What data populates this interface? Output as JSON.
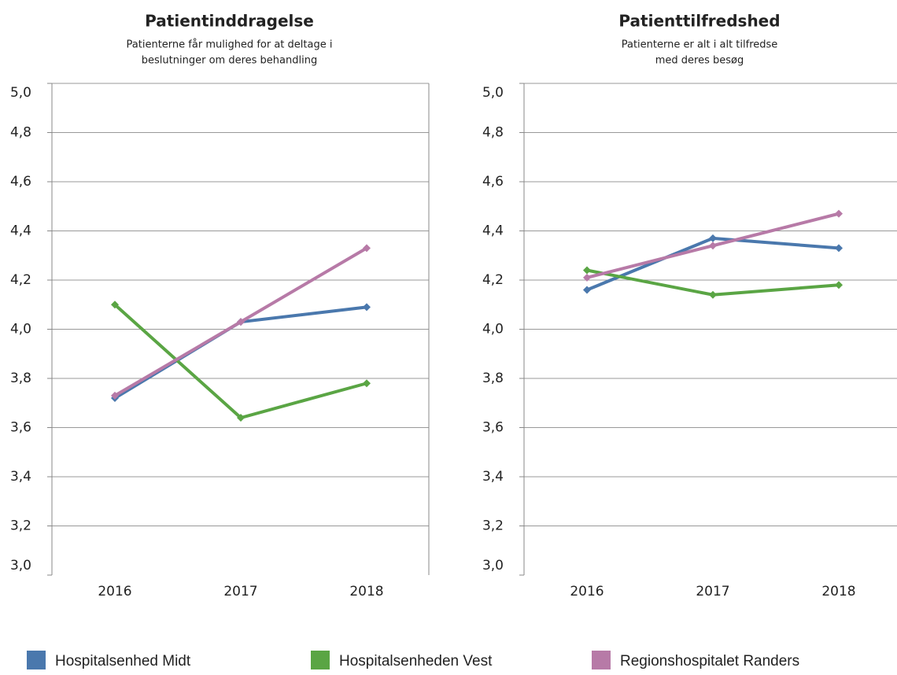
{
  "chart_data": [
    {
      "type": "line",
      "title": "Patientinddragelse",
      "subtitle": [
        "Patienterne får mulighed for at deltage i",
        "beslutninger om deres behandling"
      ],
      "categories": [
        "2016",
        "2017",
        "2018"
      ],
      "series": [
        {
          "name": "Hospitalsenhed Midt",
          "color": "#4a78ad",
          "values": [
            3.72,
            4.03,
            4.09
          ]
        },
        {
          "name": "Hospitalsenheden Vest",
          "color": "#5aa544",
          "values": [
            4.1,
            3.64,
            3.78
          ]
        },
        {
          "name": "Regionshospitalet Randers",
          "color": "#b77aa7",
          "values": [
            3.73,
            4.03,
            4.33
          ]
        }
      ],
      "ylim": [
        3.0,
        5.0
      ],
      "yticks": [
        {
          "value": 3.0,
          "label": "3,0"
        },
        {
          "value": 3.2,
          "label": "3,2"
        },
        {
          "value": 3.4,
          "label": "3,4"
        },
        {
          "value": 3.6,
          "label": "3,6"
        },
        {
          "value": 3.8,
          "label": "3,8"
        },
        {
          "value": 4.0,
          "label": "4,0"
        },
        {
          "value": 4.2,
          "label": "4,2"
        },
        {
          "value": 4.4,
          "label": "4,4"
        },
        {
          "value": 4.6,
          "label": "4,6"
        },
        {
          "value": 4.8,
          "label": "4,8"
        },
        {
          "value": 5.0,
          "label": "5,0"
        }
      ],
      "grid": true
    },
    {
      "type": "line",
      "title": "Patienttilfredshed",
      "subtitle": [
        "Patienterne er alt i alt tilfredse",
        "med deres besøg"
      ],
      "categories": [
        "2016",
        "2017",
        "2018"
      ],
      "series": [
        {
          "color": "#4a78ad",
          "values": [
            4.16,
            4.37,
            4.33
          ]
        },
        {
          "color": "#5aa544",
          "values": [
            4.24,
            4.14,
            4.18
          ]
        },
        {
          "color": "#b77aa7",
          "values": [
            4.21,
            4.34,
            4.47
          ]
        }
      ],
      "ylim": [
        3.0,
        5.0
      ],
      "yticks": [
        {
          "value": 3.0,
          "label": "3,0"
        },
        {
          "value": 3.2,
          "label": "3,2"
        },
        {
          "value": 3.4,
          "label": "3,4"
        },
        {
          "value": 3.6,
          "label": "3,6"
        },
        {
          "value": 3.8,
          "label": "3,8"
        },
        {
          "value": 4.0,
          "label": "4,0"
        },
        {
          "value": 4.2,
          "label": "4,2"
        },
        {
          "value": 4.4,
          "label": "4,4"
        },
        {
          "value": 4.6,
          "label": "4,6"
        },
        {
          "value": 4.8,
          "label": "4,8"
        },
        {
          "value": 5.0,
          "label": "5,0"
        }
      ],
      "grid": true
    }
  ]
}
